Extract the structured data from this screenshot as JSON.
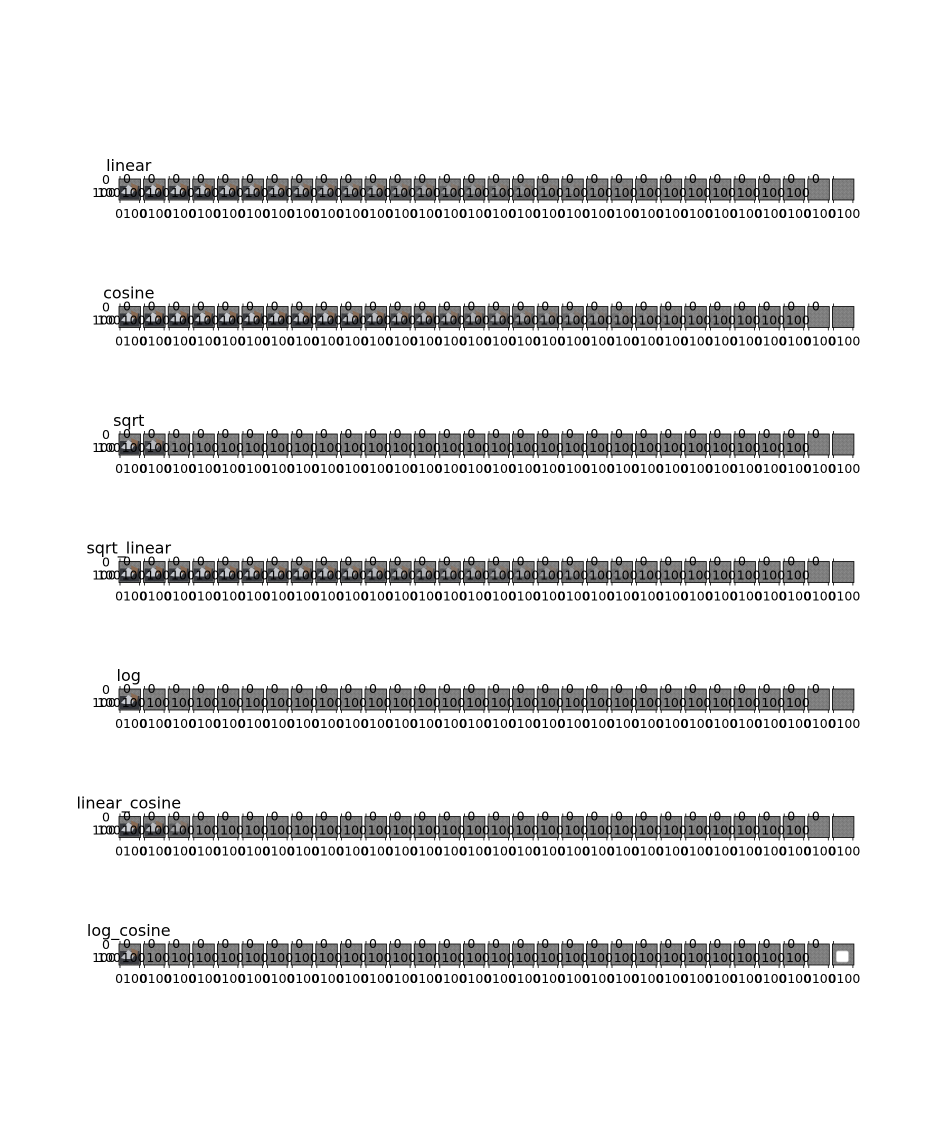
{
  "chart_data": {
    "type": "image-grid",
    "rows": [
      {
        "name": "linear",
        "fade": [
          1.0,
          1.0,
          0.95,
          0.9,
          0.85,
          0.8,
          0.75,
          0.7,
          0.65,
          0.6,
          0.55,
          0.5,
          0.45,
          0.4,
          0.35,
          0.3,
          0.25,
          0.2,
          0.15,
          0.12,
          0.1,
          0.08,
          0.06,
          0.05,
          0.04,
          0.03,
          0.02,
          0.01,
          0.0,
          0.0
        ]
      },
      {
        "name": "cosine",
        "fade": [
          1.0,
          1.0,
          1.0,
          1.0,
          0.98,
          0.96,
          0.94,
          0.92,
          0.9,
          0.87,
          0.84,
          0.8,
          0.76,
          0.7,
          0.64,
          0.58,
          0.5,
          0.42,
          0.35,
          0.28,
          0.2,
          0.15,
          0.1,
          0.07,
          0.05,
          0.03,
          0.02,
          0.01,
          0.0,
          0.0
        ]
      },
      {
        "name": "sqrt",
        "fade": [
          1.0,
          0.75,
          0.1,
          0.05,
          0.03,
          0.02,
          0.01,
          0,
          0,
          0,
          0,
          0,
          0,
          0,
          0,
          0,
          0,
          0,
          0,
          0,
          0,
          0,
          0,
          0,
          0,
          0,
          0,
          0,
          0,
          0
        ]
      },
      {
        "name": "sqrt_linear",
        "fade": [
          1.0,
          1.0,
          0.97,
          0.94,
          0.91,
          0.88,
          0.85,
          0.82,
          0.78,
          0.74,
          0.7,
          0.66,
          0.6,
          0.55,
          0.5,
          0.45,
          0.4,
          0.35,
          0.3,
          0.25,
          0.2,
          0.15,
          0.1,
          0.07,
          0.05,
          0.03,
          0.02,
          0.01,
          0.0,
          0.0
        ]
      },
      {
        "name": "log",
        "fade": [
          1.0,
          0.05,
          0.02,
          0.01,
          0,
          0,
          0,
          0,
          0,
          0,
          0,
          0,
          0,
          0,
          0,
          0,
          0,
          0,
          0,
          0,
          0,
          0,
          0,
          0,
          0,
          0,
          0,
          0,
          0,
          0
        ]
      },
      {
        "name": "linear_cosine",
        "fade": [
          1.0,
          0.8,
          0.5,
          0.05,
          0.02,
          0.01,
          0,
          0,
          0,
          0,
          0,
          0,
          0,
          0,
          0,
          0,
          0,
          0,
          0,
          0,
          0,
          0,
          0,
          0,
          0,
          0,
          0,
          0,
          0,
          0
        ]
      },
      {
        "name": "log_cosine",
        "fade": [
          0.9,
          0.05,
          0.02,
          0.01,
          0,
          0,
          0,
          0,
          0,
          0,
          0,
          0,
          0,
          0,
          0,
          0,
          0,
          0,
          0,
          0,
          0,
          0,
          0,
          0,
          0,
          0,
          0,
          0,
          0,
          0
        ]
      }
    ],
    "y_tick_labels": [
      "0",
      "100"
    ],
    "x_tick_labels": [
      "0",
      "100"
    ],
    "legend": {
      "location": "lower-right",
      "row": "log_cosine",
      "entries": []
    }
  },
  "colors": {
    "noise_gray": "#7f7f7f",
    "image_dark": "#2e3036",
    "image_brown": "#8a6a52",
    "image_light": "#c9ccd2"
  }
}
